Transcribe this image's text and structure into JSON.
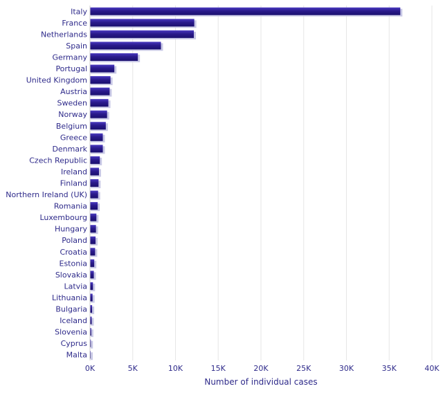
{
  "chart_data": {
    "type": "bar",
    "orientation": "horizontal",
    "categories": [
      "Italy",
      "France",
      "Netherlands",
      "Spain",
      "Germany",
      "Portugal",
      "United Kingdom",
      "Austria",
      "Sweden",
      "Norway",
      "Belgium",
      "Greece",
      "Denmark",
      "Czech Republic",
      "Ireland",
      "Finland",
      "Northern Ireland (UK)",
      "Romania",
      "Luxembourg",
      "Hungary",
      "Poland",
      "Croatia",
      "Estonia",
      "Slovakia",
      "Latvia",
      "Lithuania",
      "Bulgaria",
      "Iceland",
      "Slovenia",
      "Cyprus",
      "Malta"
    ],
    "values": [
      36300,
      12200,
      12150,
      8300,
      5600,
      2850,
      2400,
      2300,
      2150,
      2000,
      1850,
      1500,
      1500,
      1150,
      1050,
      1000,
      950,
      900,
      750,
      700,
      650,
      600,
      500,
      450,
      350,
      300,
      250,
      200,
      150,
      100,
      30
    ],
    "title": "",
    "xlabel": "Number of individual cases",
    "ylabel": "",
    "xlim": [
      0,
      40000
    ],
    "xticks": [
      0,
      5000,
      10000,
      15000,
      20000,
      25000,
      30000,
      35000,
      40000
    ],
    "xtick_labels": [
      "0K",
      "5K",
      "10K",
      "15K",
      "20K",
      "25K",
      "30K",
      "35K",
      "40K"
    ],
    "grid": true,
    "legend": "none",
    "colors": {
      "bar": "#2a1a8c",
      "bar_highlight": "#5a4ad0",
      "bar_shadow": "#c9c9e6",
      "text": "#2e2a8a",
      "grid": "#e6e6e6"
    }
  }
}
